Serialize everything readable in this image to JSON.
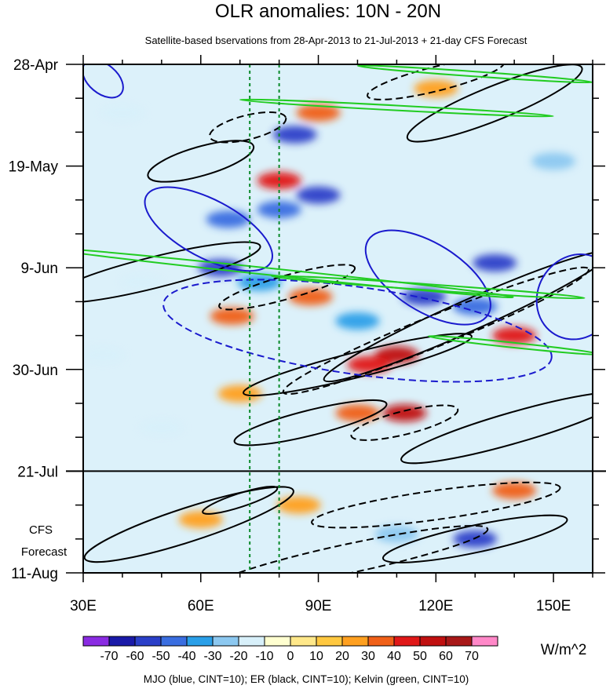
{
  "chart_data": {
    "type": "heatmap",
    "title": "OLR anomalies: 10N - 20N",
    "subtitle": "Satellite-based bservations from 28-Apr-2013 to 21-Jul-2013 + 21-day CFS Forecast",
    "xlabel": "",
    "ylabel": "",
    "xlim": [
      30,
      160
    ],
    "x_ticks": [
      {
        "value": 30,
        "label": "30E"
      },
      {
        "value": 60,
        "label": "60E"
      },
      {
        "value": 90,
        "label": "90E"
      },
      {
        "value": 120,
        "label": "120E"
      },
      {
        "value": 150,
        "label": "150E"
      }
    ],
    "ylim_days": [
      0,
      105
    ],
    "y_ticks": [
      {
        "day": 0,
        "label": "28-Apr"
      },
      {
        "day": 21,
        "label": "19-May"
      },
      {
        "day": 42,
        "label": "9-Jun"
      },
      {
        "day": 63,
        "label": "30-Jun"
      },
      {
        "day": 84,
        "label": "21-Jul"
      },
      {
        "day": 105,
        "label": "11-Aug"
      }
    ],
    "forecast_start_day": 84,
    "forecast_label_line1": "CFS",
    "forecast_label_line2": "Forecast",
    "reference_lines_lon": [
      72.5,
      80
    ],
    "colorbar": {
      "units": "W/m^2",
      "levels": [
        -70,
        -60,
        -50,
        -40,
        -30,
        -20,
        -10,
        0,
        10,
        20,
        30,
        40,
        50,
        60,
        70
      ],
      "level_labels": [
        "-70",
        "-60",
        "-50",
        "-40",
        "-30",
        "-20",
        "-10",
        "0",
        "10",
        "20",
        "30",
        "40",
        "50",
        "60",
        "70"
      ],
      "colors": [
        "#8a2be2",
        "#1a1aa8",
        "#2a3fc8",
        "#3a6ee0",
        "#2a9fe8",
        "#8cc8f0",
        "#d8f0fa",
        "#ffffd0",
        "#ffe88a",
        "#ffc840",
        "#ffa020",
        "#f06018",
        "#e01818",
        "#c01010",
        "#a81818",
        "#ff88c8"
      ]
    },
    "contour_legend": "MJO (blue, CINT=10); ER (black, CINT=10); Kelvin (green, CINT=10)",
    "series": [
      {
        "name": "MJO",
        "color": "#1a1acd",
        "cint": 10
      },
      {
        "name": "ER",
        "color": "#000000",
        "cint": 10
      },
      {
        "name": "Kelvin",
        "color": "#22cc22",
        "cint": 10
      }
    ],
    "anomaly_features": [
      {
        "lon": 84,
        "day": 14.5,
        "value": -60
      },
      {
        "lon": 80,
        "day": 24,
        "value": 40
      },
      {
        "lon": 90,
        "day": 27,
        "value": -60
      },
      {
        "lon": 67,
        "day": 32,
        "value": -50
      },
      {
        "lon": 80,
        "day": 30,
        "value": -50
      },
      {
        "lon": 65,
        "day": 42,
        "value": -60
      },
      {
        "lon": 75,
        "day": 45,
        "value": -40
      },
      {
        "lon": 135,
        "day": 41,
        "value": -60
      },
      {
        "lon": 117,
        "day": 48,
        "value": -60
      },
      {
        "lon": 130,
        "day": 50,
        "value": -50
      },
      {
        "lon": 100,
        "day": 53,
        "value": -40
      },
      {
        "lon": 68,
        "day": 52,
        "value": 30
      },
      {
        "lon": 88,
        "day": 48,
        "value": 30
      },
      {
        "lon": 110,
        "day": 60,
        "value": 50
      },
      {
        "lon": 103,
        "day": 62,
        "value": 40
      },
      {
        "lon": 140,
        "day": 56,
        "value": 40
      },
      {
        "lon": 90,
        "day": 10,
        "value": 30
      },
      {
        "lon": 120,
        "day": 5,
        "value": 20
      },
      {
        "lon": 112,
        "day": 72,
        "value": 50
      },
      {
        "lon": 100,
        "day": 72,
        "value": 30
      },
      {
        "lon": 130,
        "day": 98,
        "value": -60
      },
      {
        "lon": 110,
        "day": 97,
        "value": -30
      },
      {
        "lon": 140,
        "day": 88,
        "value": 30
      },
      {
        "lon": 60,
        "day": 94,
        "value": 20
      },
      {
        "lon": 85,
        "day": 91,
        "value": 20
      },
      {
        "lon": 45,
        "day": 45,
        "value": -20
      },
      {
        "lon": 50,
        "day": 75,
        "value": -20
      },
      {
        "lon": 35,
        "day": 60,
        "value": -20
      },
      {
        "lon": 70,
        "day": 68,
        "value": 20
      },
      {
        "lon": 150,
        "day": 20,
        "value": -30
      },
      {
        "lon": 40,
        "day": 10,
        "value": -20
      }
    ]
  }
}
